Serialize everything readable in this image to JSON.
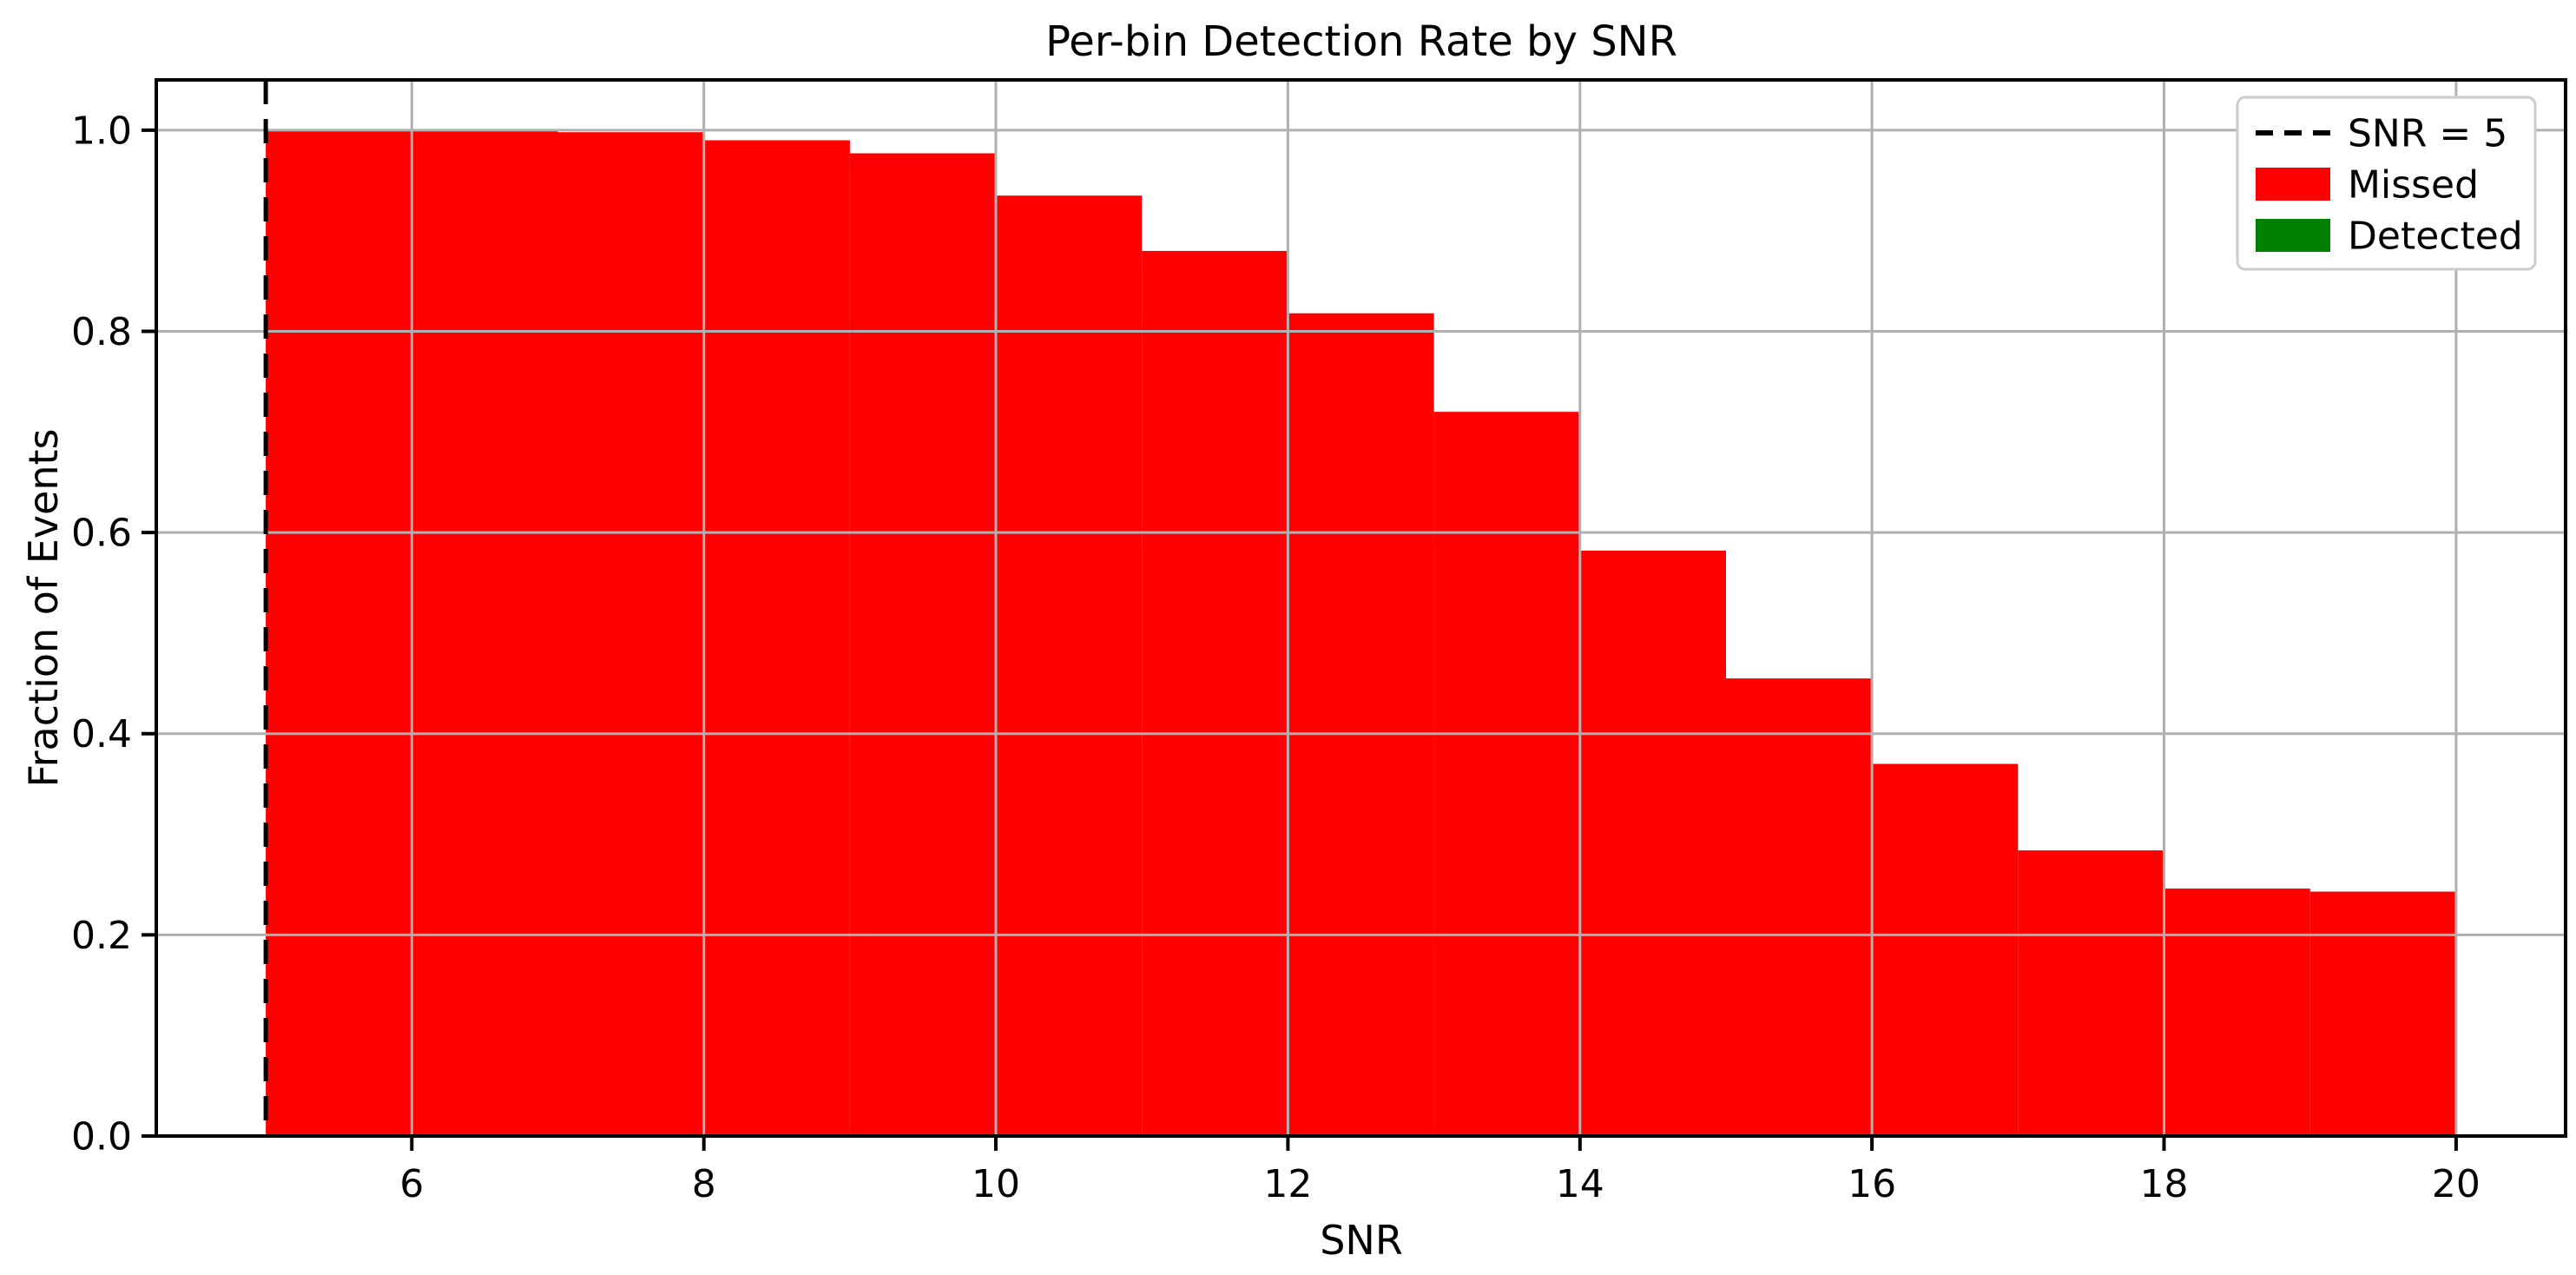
{
  "chart_data": {
    "type": "bar",
    "title": "Per-bin Detection Rate by SNR",
    "xlabel": "SNR",
    "ylabel": "Fraction of Events",
    "xlim": [
      4.25,
      20.75
    ],
    "ylim": [
      0,
      1.05
    ],
    "xticks": [
      6,
      8,
      10,
      12,
      14,
      16,
      18,
      20
    ],
    "yticks": [
      0.0,
      0.2,
      0.4,
      0.6,
      0.8,
      1.0
    ],
    "ytick_labels": [
      "0.0",
      "0.2",
      "0.4",
      "0.6",
      "0.8",
      "1.0"
    ],
    "grid": true,
    "grid_color": "#b0b0b0",
    "background": "#ffffff",
    "bin_edges": [
      5,
      6,
      7,
      8,
      9,
      10,
      11,
      12,
      13,
      14,
      15,
      16,
      17,
      18,
      19,
      20
    ],
    "series": [
      {
        "name": "Missed",
        "color": "#ff0000",
        "values": [
          1.0,
          1.0,
          0.998,
          0.99,
          0.977,
          0.935,
          0.88,
          0.818,
          0.72,
          0.582,
          0.455,
          0.37,
          0.284,
          0.246,
          0.243
        ]
      },
      {
        "name": "Detected",
        "color": "#008000",
        "values": [
          0,
          0,
          0,
          0,
          0,
          0,
          0,
          0,
          0,
          0,
          0,
          0,
          0,
          0,
          0
        ]
      }
    ],
    "reference_line": {
      "x": 5,
      "label": "SNR = 5",
      "color": "#000000",
      "style": "dashed"
    },
    "legend": {
      "position": "upper right",
      "entries": [
        {
          "label": "SNR = 5",
          "marker": "dashed-line",
          "color": "#000000"
        },
        {
          "label": "Missed",
          "marker": "rect",
          "color": "#ff0000"
        },
        {
          "label": "Detected",
          "marker": "rect",
          "color": "#008000"
        }
      ]
    }
  }
}
